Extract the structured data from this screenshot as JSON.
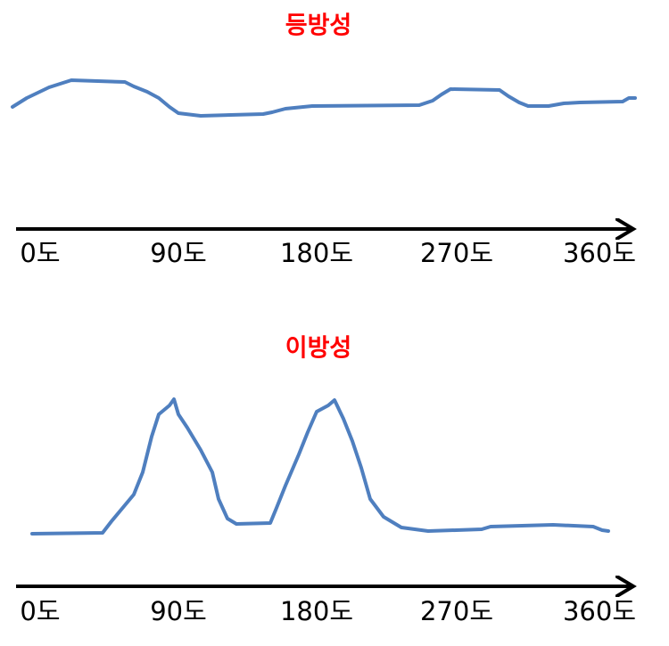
{
  "panels": [
    {
      "title": "등방성",
      "axis_labels": [
        "0도",
        "90도",
        "180도",
        "270도",
        "360도"
      ]
    },
    {
      "title": "이방성",
      "axis_labels": [
        "0도",
        "90도",
        "180도",
        "270도",
        "360도"
      ]
    }
  ]
}
